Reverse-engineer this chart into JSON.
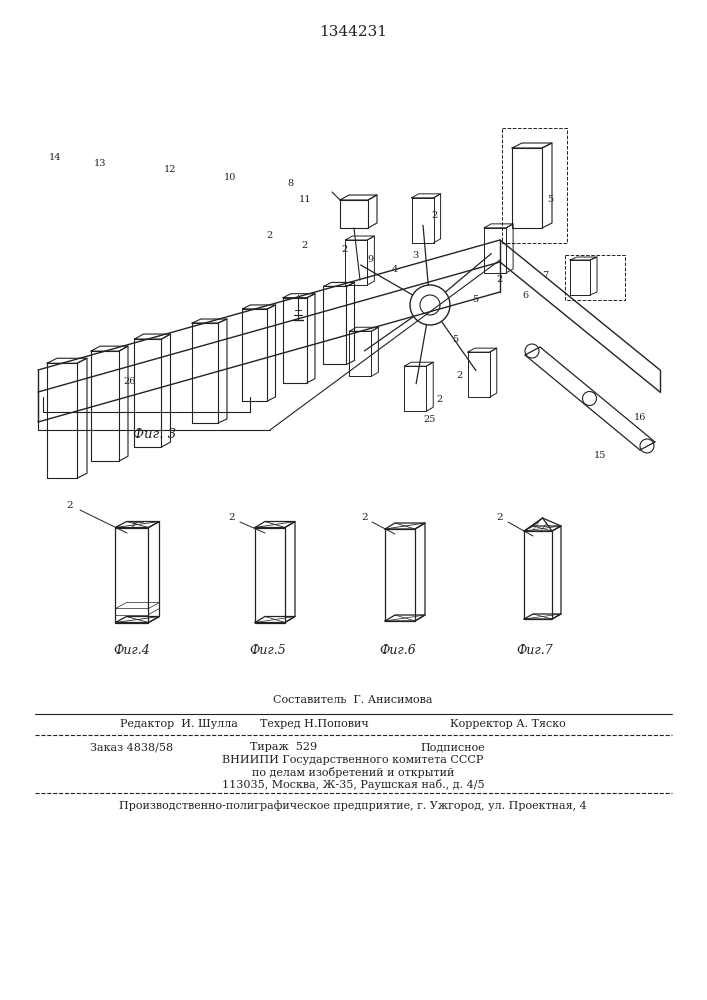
{
  "patent_number": "1344231",
  "fig3_label": "Фиг. 3",
  "fig4_label": "Фиг.4",
  "fig5_label": "Фиг.5",
  "fig6_label": "Фиг.6",
  "fig7_label": "Фиг.7",
  "footer_line1": "Составитель  Г. Анисимова",
  "footer_line2_left": "Редактор  И. Шулла",
  "footer_line2_mid": "Техред Н.Попович",
  "footer_line2_right": "Корректор А. Тяско",
  "footer_line3_a": "Заказ 4838/58",
  "footer_line3_b": "Тираж  529",
  "footer_line3_c": "Подписное",
  "footer_line4": "ВНИИПИ Государственного комитета СССР",
  "footer_line5": "по делам изобретений и открытий",
  "footer_line6": "113035, Москва, Ж-35, Раушская наб., д. 4/5",
  "footer_line7": "Производственно-полиграфическое предприятие, г. Ужгород, ул. Проектная, 4",
  "bg_color": "#ffffff",
  "line_color": "#222222"
}
